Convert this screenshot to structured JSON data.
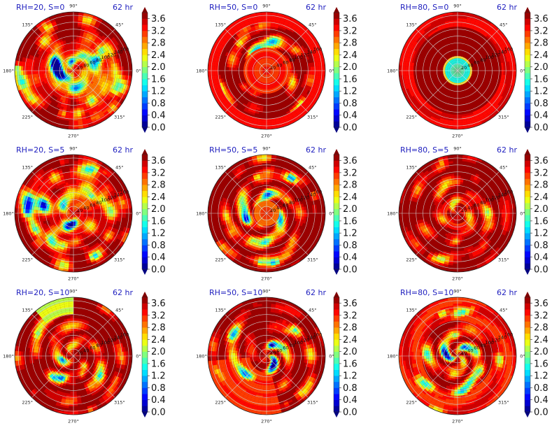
{
  "chart_data": {
    "type": "heatmap",
    "projection": "polar",
    "layout": {
      "rows": 3,
      "cols": 3
    },
    "colormap": "jet",
    "colorbar": {
      "ticks": [
        "0.0",
        "0.4",
        "0.8",
        "1.2",
        "1.6",
        "2.0",
        "2.4",
        "2.8",
        "3.2",
        "3.6"
      ],
      "range": [
        0.0,
        3.8
      ],
      "extend": "both"
    },
    "angle_ticks": [
      "0°",
      "45°",
      "90°",
      "135°",
      "180°",
      "225°",
      "270°",
      "315°"
    ],
    "radial_ticks": [
      "20",
      "40",
      "60",
      "80",
      "100",
      "120",
      "140",
      "160"
    ],
    "panels": [
      {
        "title": "RH=20, S=0",
        "time": "62 hr",
        "center_level": "high",
        "features": "scattered-orange-yellow"
      },
      {
        "title": "RH=50, S=0",
        "time": "62 hr",
        "center_level": "mid",
        "features": "orange-core-ring"
      },
      {
        "title": "RH=80, S=0",
        "time": "62 hr",
        "center_level": "low",
        "features": "cyan-eye-dark-ring"
      },
      {
        "title": "RH=20, S=5",
        "time": "62 hr",
        "center_level": "high",
        "features": "scattered-orange-yellow"
      },
      {
        "title": "RH=50, S=5",
        "time": "62 hr",
        "center_level": "mid",
        "features": "spiral-bands"
      },
      {
        "title": "RH=80, S=5",
        "time": "62 hr",
        "center_level": "high",
        "features": "dark-with-inner-ring"
      },
      {
        "title": "RH=20, S=10",
        "time": "62 hr",
        "center_level": "high",
        "features": "dark-with-green-patches"
      },
      {
        "title": "RH=50, S=10",
        "time": "62 hr",
        "center_level": "mid",
        "features": "lower-left-orange-spiral"
      },
      {
        "title": "RH=80, S=10",
        "time": "62 hr",
        "center_level": "high",
        "features": "outer-orange-bands"
      }
    ]
  }
}
